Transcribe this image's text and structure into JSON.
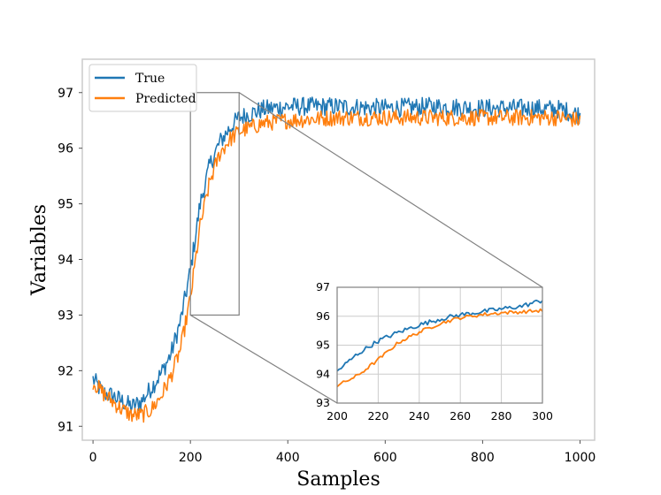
{
  "chart_data": [
    {
      "type": "line",
      "xlabel": "Samples",
      "ylabel": "Variables",
      "xlim": [
        -22,
        1030
      ],
      "ylim": [
        90.75,
        97.6
      ],
      "xticks": [
        0,
        200,
        400,
        600,
        800,
        1000
      ],
      "yticks": [
        91,
        92,
        93,
        94,
        95,
        96,
        97
      ],
      "xtick_labels": [
        "0",
        "200",
        "400",
        "600",
        "800",
        "1000"
      ],
      "ytick_labels": [
        "91",
        "92",
        "93",
        "94",
        "95",
        "96",
        "97"
      ],
      "grid": false,
      "legend_placement": "upper-left",
      "noise_amplitude": {
        "True": 0.17,
        "Predicted": 0.15
      },
      "series": [
        {
          "name": "True",
          "color": "#1f77b4",
          "x": [
            0,
            20,
            40,
            60,
            80,
            100,
            120,
            140,
            160,
            180,
            200,
            220,
            240,
            260,
            280,
            300,
            350,
            400,
            500,
            600,
            700,
            800,
            900,
            960,
            1000
          ],
          "values": [
            91.85,
            91.6,
            91.55,
            91.45,
            91.35,
            91.45,
            91.7,
            91.95,
            92.3,
            92.9,
            93.8,
            95.0,
            95.7,
            96.1,
            96.35,
            96.55,
            96.7,
            96.75,
            96.75,
            96.72,
            96.75,
            96.72,
            96.72,
            96.7,
            96.6
          ]
        },
        {
          "name": "Predicted",
          "color": "#ff7f0e",
          "x": [
            0,
            20,
            40,
            60,
            80,
            100,
            120,
            140,
            160,
            180,
            200,
            220,
            240,
            260,
            280,
            300,
            350,
            400,
            500,
            600,
            700,
            800,
            900,
            960,
            1000
          ],
          "values": [
            91.8,
            91.6,
            91.45,
            91.3,
            91.2,
            91.2,
            91.3,
            91.55,
            91.9,
            92.4,
            93.3,
            94.6,
            95.4,
            95.9,
            96.15,
            96.3,
            96.45,
            96.5,
            96.55,
            96.55,
            96.55,
            96.55,
            96.55,
            96.55,
            96.5
          ]
        }
      ],
      "zoom_box": {
        "x": [
          200,
          300
        ],
        "y": [
          93,
          97
        ]
      }
    },
    {
      "type": "line",
      "role": "inset",
      "xlim": [
        200,
        300
      ],
      "ylim": [
        93,
        97
      ],
      "xticks": [
        200,
        220,
        240,
        260,
        280,
        300
      ],
      "yticks": [
        93,
        94,
        95,
        96,
        97
      ],
      "xtick_labels": [
        "200",
        "220",
        "240",
        "260",
        "280",
        "300"
      ],
      "ytick_labels": [
        "93",
        "94",
        "95",
        "96",
        "97"
      ],
      "grid": true,
      "noise_amplitude": {
        "True": 0.08,
        "Predicted": 0.06
      },
      "series": [
        {
          "name": "True",
          "color": "#1f77b4",
          "x": [
            200,
            210,
            220,
            230,
            240,
            250,
            260,
            270,
            280,
            290,
            300
          ],
          "values": [
            94.1,
            94.7,
            95.15,
            95.45,
            95.7,
            95.9,
            96.05,
            96.15,
            96.25,
            96.35,
            96.55
          ]
        },
        {
          "name": "Predicted",
          "color": "#ff7f0e",
          "x": [
            200,
            210,
            220,
            230,
            240,
            250,
            260,
            270,
            280,
            290,
            300
          ],
          "values": [
            93.6,
            93.95,
            94.5,
            95.1,
            95.45,
            95.75,
            95.95,
            96.05,
            96.12,
            96.15,
            96.2
          ]
        }
      ]
    }
  ]
}
